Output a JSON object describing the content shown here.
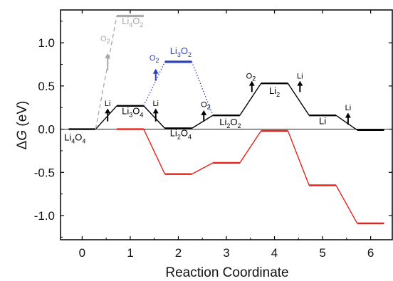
{
  "chart_data": {
    "type": "line",
    "xlabel": "Reaction Coordinate",
    "ylabel_prefix": "Δ",
    "ylabel_var": "G",
    "ylabel_unit": " (eV)",
    "xlim": [
      -0.45,
      6.45
    ],
    "ylim": [
      -1.28,
      1.38
    ],
    "x_ticks": [
      0,
      1,
      2,
      3,
      4,
      5,
      6
    ],
    "y_ticks": [
      {
        "value": 1.0,
        "label": "1.0"
      },
      {
        "value": 0.5,
        "label": "0.5"
      },
      {
        "value": 0.0,
        "label": "0.0"
      },
      {
        "value": -0.5,
        "label": "-0.5"
      },
      {
        "value": -1.0,
        "label": "-1.0"
      }
    ],
    "series": [
      {
        "id": "black",
        "color": "#000000",
        "style": "solid",
        "levels": [
          {
            "x": [
              -0.28,
              0.28
            ],
            "y": 0.0
          },
          {
            "x": [
              0.72,
              1.28
            ],
            "y": 0.27
          },
          {
            "x": [
              1.72,
              2.28
            ],
            "y": 0.01
          },
          {
            "x": [
              2.72,
              3.28
            ],
            "y": 0.16
          },
          {
            "x": [
              3.72,
              4.28
            ],
            "y": 0.53
          },
          {
            "x": [
              4.72,
              5.28
            ],
            "y": 0.16
          },
          {
            "x": [
              5.72,
              6.28
            ],
            "y": -0.01
          }
        ]
      },
      {
        "id": "red",
        "color": "#e8221b",
        "style": "solid",
        "levels": [
          {
            "x": [
              0.72,
              1.28
            ],
            "y": 0.0
          },
          {
            "x": [
              1.72,
              2.28
            ],
            "y": -0.52
          },
          {
            "x": [
              2.72,
              3.28
            ],
            "y": -0.39
          },
          {
            "x": [
              3.72,
              4.28
            ],
            "y": -0.02
          },
          {
            "x": [
              4.72,
              5.28
            ],
            "y": -0.65
          },
          {
            "x": [
              5.72,
              6.28
            ],
            "y": -1.09
          }
        ]
      },
      {
        "id": "gray",
        "color": "#a9a9a9",
        "style": "dashed",
        "levels": [
          {
            "x": [
              0.28,
              0.72
            ],
            "y": 0.0,
            "to": 1.31
          },
          {
            "x": [
              0.72,
              1.28
            ],
            "y": 1.31
          }
        ]
      },
      {
        "id": "blue",
        "color": "#2b3fbf",
        "style": "dotted",
        "levels": [
          {
            "x": [
              1.28,
              1.72
            ],
            "y": 0.27,
            "to": 0.78
          },
          {
            "x": [
              1.72,
              2.28
            ],
            "y": 0.78
          },
          {
            "x": [
              2.28,
              2.72
            ],
            "y": 0.78,
            "to": 0.16
          }
        ]
      }
    ],
    "species_labels": [
      {
        "x": -0.15,
        "y": -0.13,
        "base": "Li",
        "sub1": "4",
        "mid": "O",
        "sub2": "4",
        "color": "#000000"
      },
      {
        "x": 1.05,
        "y": 0.175,
        "base": "Li",
        "sub1": "3",
        "mid": "O",
        "sub2": "4",
        "color": "#000000"
      },
      {
        "x": 2.05,
        "y": -0.08,
        "base": "Li",
        "sub1": "2",
        "mid": "O",
        "sub2": "4",
        "color": "#000000"
      },
      {
        "x": 3.08,
        "y": 0.045,
        "base": "Li",
        "sub1": "2",
        "mid": "O",
        "sub2": "2",
        "color": "#000000"
      },
      {
        "x": 4.0,
        "y": 0.41,
        "base": "Li",
        "sub1": "2",
        "mid": "",
        "sub2": "",
        "color": "#000000"
      },
      {
        "x": 5.0,
        "y": 0.06,
        "base": "Li",
        "sub1": "",
        "mid": "",
        "sub2": "",
        "color": "#000000"
      },
      {
        "x": 1.05,
        "y": 1.215,
        "base": "Li",
        "sub1": "4",
        "mid": "O",
        "sub2": "2",
        "color": "#a9a9a9"
      },
      {
        "x": 2.05,
        "y": 0.87,
        "base": "Li",
        "sub1": "3",
        "mid": "O",
        "sub2": "2",
        "color": "#2b3fbf"
      }
    ],
    "arrows": [
      {
        "x": 0.53,
        "y0": 0.68,
        "y1": 0.88,
        "label": "O",
        "sub": "2",
        "color": "#a9a9a9",
        "label_dy": 0.17,
        "label_dx": -0.05
      },
      {
        "x": 0.53,
        "y0": 0.09,
        "y1": 0.24,
        "label": "Li",
        "sub": "",
        "color": "#000000",
        "label_dy": 0.06,
        "label_dx": 0.0
      },
      {
        "x": 1.53,
        "y0": 0.09,
        "y1": 0.24,
        "label": "Li",
        "sub": "",
        "color": "#000000",
        "label_dy": 0.06,
        "label_dx": 0.0
      },
      {
        "x": 1.53,
        "y0": 0.56,
        "y1": 0.7,
        "label": "O",
        "sub": "2",
        "color": "#2b3fbf",
        "label_dy": 0.13,
        "label_dx": -0.03
      },
      {
        "x": 2.53,
        "y0": 0.09,
        "y1": 0.22,
        "label": "O",
        "sub": "2",
        "color": "#000000",
        "label_dy": 0.07,
        "label_dx": 0.04
      },
      {
        "x": 3.53,
        "y0": 0.43,
        "y1": 0.56,
        "label": "O",
        "sub": "2",
        "color": "#000000",
        "label_dy": 0.06,
        "label_dx": -0.02
      },
      {
        "x": 4.53,
        "y0": 0.43,
        "y1": 0.56,
        "label": "Li",
        "sub": "",
        "color": "#000000",
        "label_dy": 0.06,
        "label_dx": 0.0
      },
      {
        "x": 5.53,
        "y0": 0.05,
        "y1": 0.19,
        "label": "Li",
        "sub": "",
        "color": "#000000",
        "label_dy": 0.06,
        "label_dx": 0.0
      }
    ],
    "zero_line": true,
    "grid": false,
    "legend": "none"
  }
}
